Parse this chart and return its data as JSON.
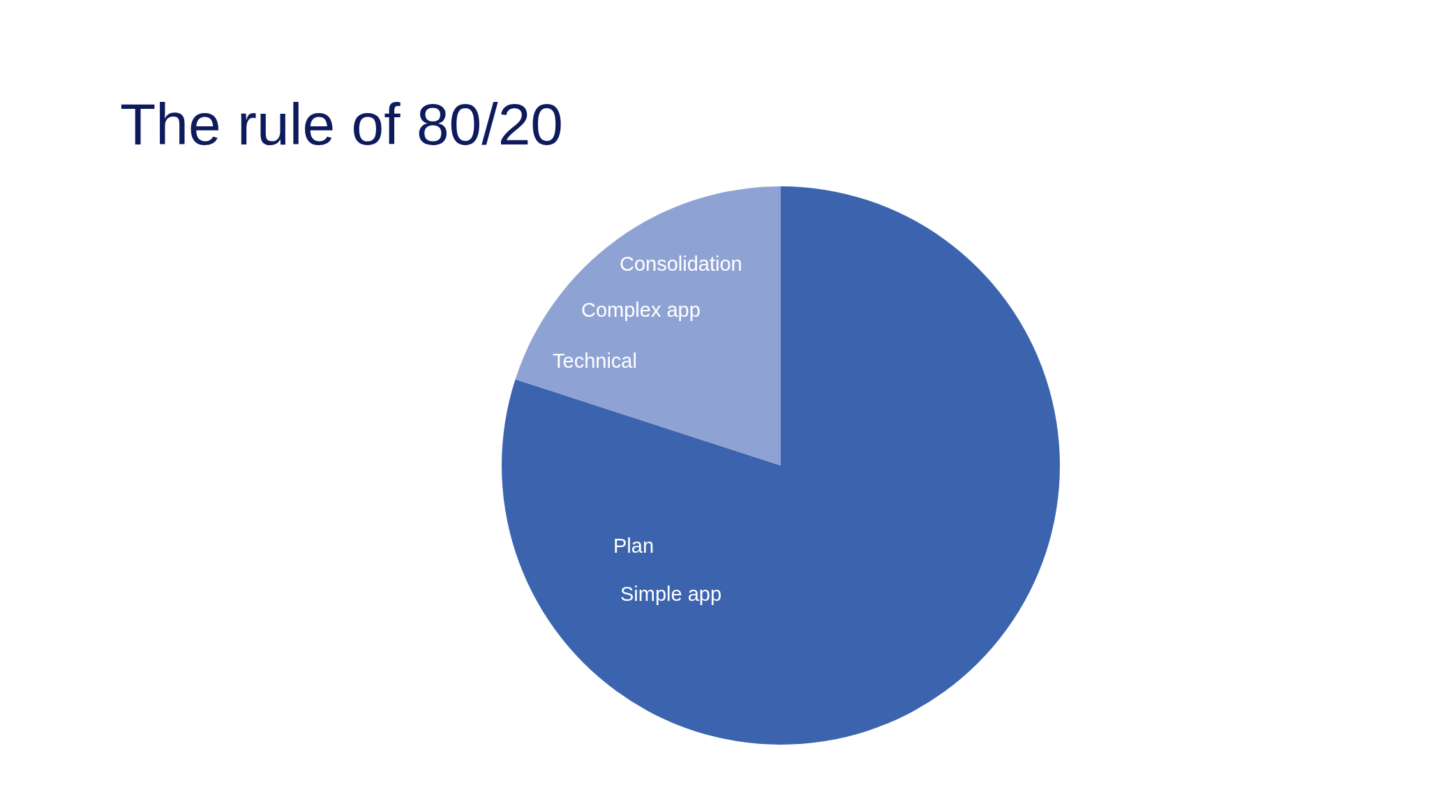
{
  "chart_data": {
    "type": "pie",
    "title": "The rule of 80/20",
    "categories": [
      "Plan\nSimple app",
      "Consolidation\nComplex app\nTechnical"
    ],
    "values": [
      80,
      20
    ],
    "colors": [
      "#3c64ae",
      "#8fa2d4"
    ],
    "legend": false
  }
}
